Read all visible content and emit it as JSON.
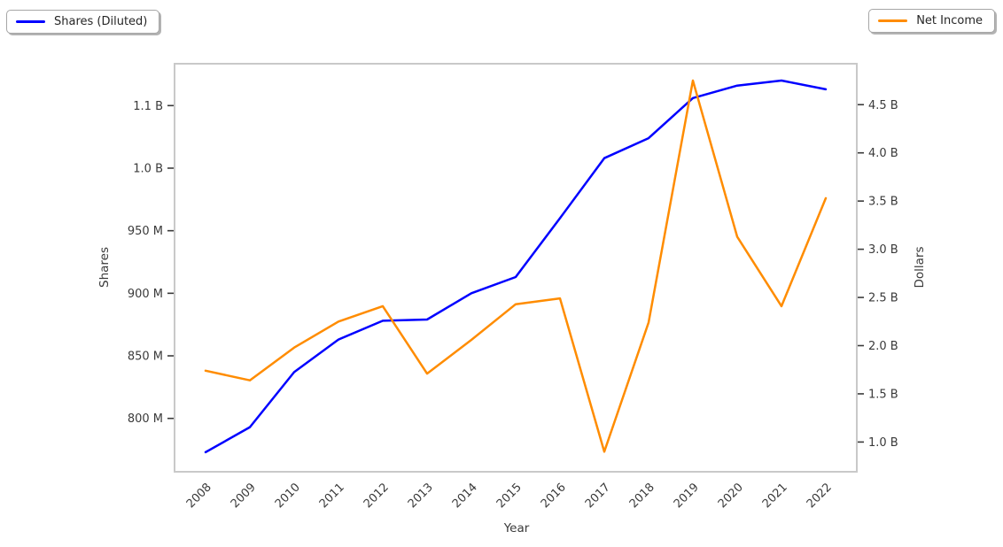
{
  "legend_left": {
    "label": "Shares (Diluted)"
  },
  "legend_right": {
    "label": "Net Income"
  },
  "chart_data": {
    "type": "line",
    "title": "",
    "xlabel": "Year",
    "ylabel_left": "Shares",
    "ylabel_right": "Dollars",
    "grid": false,
    "legend_positions": [
      "outside-top-left",
      "outside-top-right"
    ],
    "categories": [
      "2008",
      "2009",
      "2010",
      "2011",
      "2012",
      "2013",
      "2014",
      "2015",
      "2016",
      "2017",
      "2018",
      "2019",
      "2020",
      "2021",
      "2022"
    ],
    "series": [
      {
        "name": "Shares (Diluted)",
        "axis": "left",
        "color": "#0000ff",
        "unit": "shares",
        "values_millions": [
          773,
          793,
          837,
          863,
          878,
          879,
          900,
          913,
          960,
          1008,
          1024,
          1056,
          1066,
          1070,
          1063
        ]
      },
      {
        "name": "Net Income",
        "axis": "right",
        "color": "#ff8c00",
        "unit": "dollars",
        "values_billions": [
          1.74,
          1.64,
          1.98,
          2.25,
          2.41,
          1.71,
          2.06,
          2.43,
          2.49,
          0.9,
          2.24,
          4.75,
          3.13,
          2.41,
          3.53
        ]
      }
    ],
    "y_left_axis": {
      "label": "Shares",
      "tick_values_millions": [
        800,
        850,
        900,
        950,
        1000,
        1050
      ],
      "tick_labels": [
        "800 M",
        "850 M",
        "900 M",
        "950 M",
        "1.0 B",
        "1.1 B"
      ],
      "range_millions": [
        757,
        1084
      ]
    },
    "y_right_axis": {
      "label": "Dollars",
      "tick_values_billions": [
        1.0,
        1.5,
        2.0,
        2.5,
        3.0,
        3.5,
        4.0,
        4.5
      ],
      "tick_labels": [
        "1.0 B",
        "1.5 B",
        "2.0 B",
        "2.5 B",
        "3.0 B",
        "3.5 B",
        "4.0 B",
        "4.5 B"
      ],
      "range_billions": [
        0.69,
        4.93
      ]
    },
    "x_axis": {
      "label": "Year",
      "tick_labels_rotation_deg": 45
    }
  },
  "style": {
    "frame_color": "#c9c9c9",
    "tick_color": "#3a3a3a",
    "text_color": "#3a3a3a",
    "background": "#ffffff"
  }
}
